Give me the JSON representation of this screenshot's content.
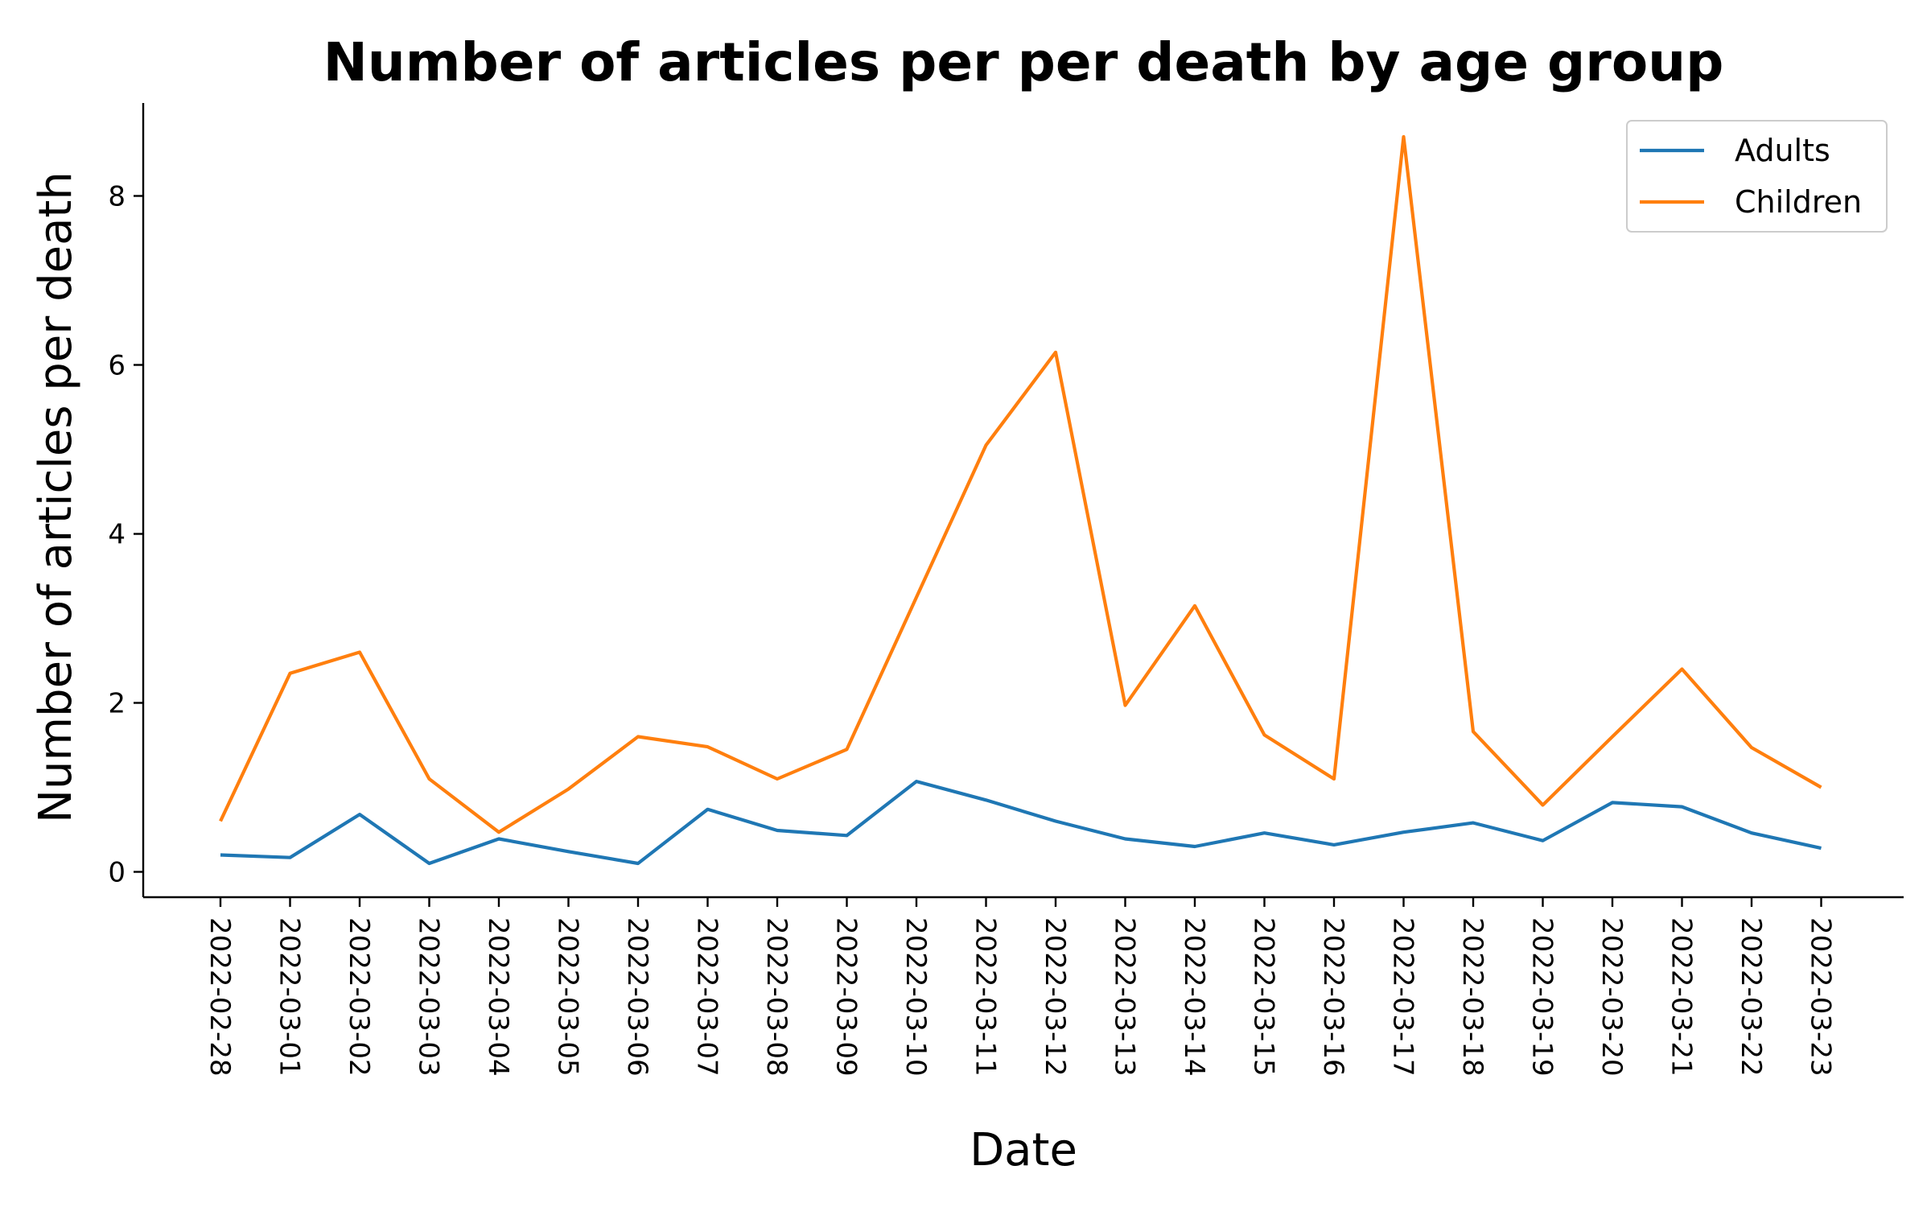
{
  "chart_data": {
    "type": "line",
    "title": "Number of articles per per death by age group",
    "xlabel": "Date",
    "ylabel": "Number of articles per death",
    "ylim": [
      -0.3,
      9.1
    ],
    "yticks": [
      0,
      2,
      4,
      6,
      8
    ],
    "grid": false,
    "legend_position": "top-right",
    "categories": [
      "2022-02-28",
      "2022-03-01",
      "2022-03-02",
      "2022-03-03",
      "2022-03-04",
      "2022-03-05",
      "2022-03-06",
      "2022-03-07",
      "2022-03-08",
      "2022-03-09",
      "2022-03-10",
      "2022-03-11",
      "2022-03-12",
      "2022-03-13",
      "2022-03-14",
      "2022-03-15",
      "2022-03-16",
      "2022-03-17",
      "2022-03-18",
      "2022-03-19",
      "2022-03-20",
      "2022-03-21",
      "2022-03-22",
      "2022-03-23"
    ],
    "series": [
      {
        "name": "Adults",
        "color": "#1f77b4",
        "values": [
          0.2,
          0.17,
          0.68,
          0.1,
          0.39,
          0.24,
          0.1,
          0.74,
          0.49,
          0.43,
          1.07,
          0.85,
          0.6,
          0.39,
          0.3,
          0.46,
          0.32,
          0.47,
          0.58,
          0.37,
          0.82,
          0.77,
          0.46,
          0.28
        ]
      },
      {
        "name": "Children",
        "color": "#ff7f0e",
        "values": [
          0.6,
          2.35,
          2.6,
          1.1,
          0.47,
          0.98,
          1.6,
          1.48,
          1.1,
          1.45,
          3.25,
          5.05,
          6.15,
          1.97,
          3.15,
          1.62,
          1.1,
          8.7,
          1.66,
          0.79,
          1.6,
          2.4,
          1.47,
          1.0
        ]
      }
    ]
  }
}
